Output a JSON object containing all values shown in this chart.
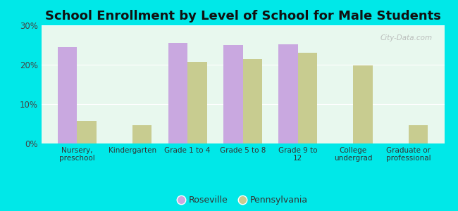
{
  "title": "School Enrollment by Level of School for Male Students",
  "categories": [
    "Nursery,\npreschool",
    "Kindergarten",
    "Grade 1 to 4",
    "Grade 5 to 8",
    "Grade 9 to\n12",
    "College\nundergrad",
    "Graduate or\nprofessional"
  ],
  "roseville": [
    24.5,
    0,
    25.5,
    25.0,
    25.2,
    0,
    0
  ],
  "pennsylvania": [
    5.8,
    4.6,
    20.7,
    21.5,
    23.0,
    19.8,
    4.7
  ],
  "roseville_color": "#c9a8e0",
  "pennsylvania_color": "#c8cc90",
  "background_color": "#00e8e8",
  "plot_bg_start": "#f0fae8",
  "plot_bg_end": "#e0f5f5",
  "ylim": [
    0,
    30
  ],
  "yticks": [
    0,
    10,
    20,
    30
  ],
  "ytick_labels": [
    "0%",
    "10%",
    "20%",
    "30%"
  ],
  "bar_width": 0.35,
  "title_fontsize": 13,
  "legend_labels": [
    "Roseville",
    "Pennsylvania"
  ]
}
